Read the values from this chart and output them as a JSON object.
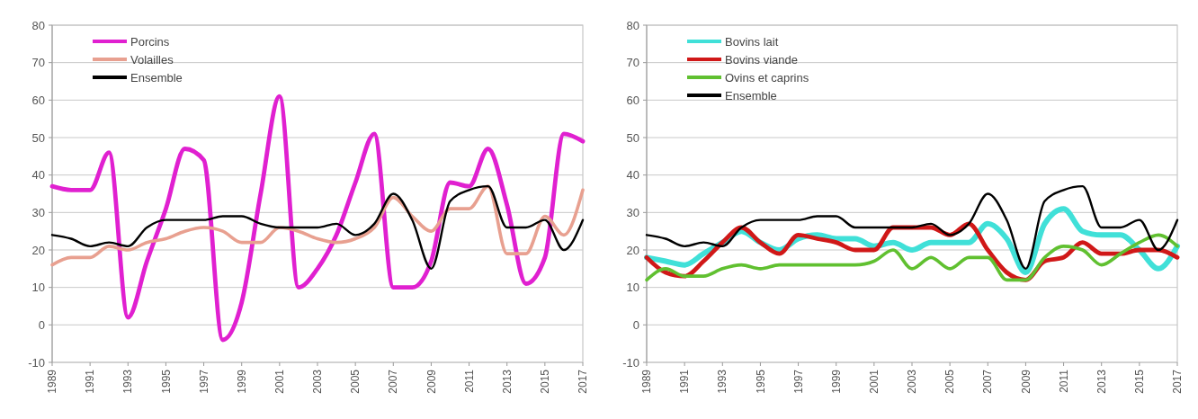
{
  "chart_data": [
    {
      "type": "line",
      "x": [
        1989,
        1990,
        1991,
        1992,
        1993,
        1994,
        1995,
        1996,
        1997,
        1998,
        1999,
        2000,
        2001,
        2002,
        2003,
        2004,
        2005,
        2006,
        2007,
        2008,
        2009,
        2010,
        2011,
        2012,
        2013,
        2014,
        2015,
        2016,
        2017
      ],
      "series": [
        {
          "name": "Porcins",
          "color": "#e020d0",
          "values": [
            37,
            36,
            36,
            46,
            2,
            17,
            31,
            47,
            44,
            -4,
            6,
            35,
            61,
            10,
            15,
            24,
            38,
            51,
            10,
            10,
            17,
            38,
            37,
            47,
            32,
            11,
            18,
            51,
            49
          ]
        },
        {
          "name": "Volailles",
          "color": "#e8a090",
          "values": [
            16,
            18,
            18,
            21,
            20,
            22,
            23,
            25,
            26,
            25,
            22,
            22,
            26,
            25,
            23,
            22,
            23,
            26,
            34,
            29,
            25,
            31,
            31,
            37,
            19,
            19,
            29,
            24,
            36
          ]
        },
        {
          "name": "Ensemble",
          "color": "#000000",
          "values": [
            24,
            23,
            21,
            22,
            21,
            26,
            28,
            28,
            28,
            29,
            29,
            27,
            26,
            26,
            26,
            27,
            24,
            27,
            35,
            28,
            15,
            33,
            36,
            37,
            26,
            26,
            28,
            20,
            28
          ]
        }
      ],
      "xlim": [
        1989,
        2017
      ],
      "xticks": [
        1989,
        1991,
        1993,
        1995,
        1997,
        1999,
        2001,
        2003,
        2005,
        2007,
        2009,
        2011,
        2013,
        2015,
        2017
      ],
      "ylim": [
        -10,
        80
      ],
      "yticks": [
        -10,
        0,
        10,
        20,
        30,
        40,
        50,
        60,
        70,
        80
      ],
      "grid": "y",
      "legend": "top left",
      "marker": "none",
      "line_style": "solid"
    },
    {
      "type": "line",
      "x": [
        1989,
        1990,
        1991,
        1992,
        1993,
        1994,
        1995,
        1996,
        1997,
        1998,
        1999,
        2000,
        2001,
        2002,
        2003,
        2004,
        2005,
        2006,
        2007,
        2008,
        2009,
        2010,
        2011,
        2012,
        2013,
        2014,
        2015,
        2016,
        2017
      ],
      "series": [
        {
          "name": "Bovins lait",
          "color": "#40e0d8",
          "values": [
            18,
            17,
            16,
            19,
            22,
            25,
            22,
            20,
            23,
            24,
            23,
            23,
            21,
            22,
            20,
            22,
            22,
            22,
            27,
            23,
            14,
            27,
            31,
            25,
            24,
            24,
            20,
            15,
            21
          ]
        },
        {
          "name": "Bovins viande",
          "color": "#d01818",
          "values": [
            18,
            14,
            13,
            17,
            22,
            26,
            22,
            19,
            24,
            23,
            22,
            20,
            20,
            26,
            26,
            26,
            24,
            27,
            20,
            14,
            12,
            17,
            18,
            22,
            19,
            19,
            20,
            20,
            18
          ]
        },
        {
          "name": "Ovins et caprins",
          "color": "#60c030",
          "values": [
            12,
            15,
            13,
            13,
            15,
            16,
            15,
            16,
            16,
            16,
            16,
            16,
            17,
            20,
            15,
            18,
            15,
            18,
            18,
            12,
            12,
            18,
            21,
            20,
            16,
            19,
            22,
            24,
            21
          ]
        },
        {
          "name": "Ensemble",
          "color": "#000000",
          "values": [
            24,
            23,
            21,
            22,
            21,
            26,
            28,
            28,
            28,
            29,
            29,
            26,
            26,
            26,
            26,
            27,
            24,
            27,
            35,
            28,
            15,
            33,
            36,
            37,
            26,
            26,
            28,
            20,
            28
          ]
        }
      ],
      "xlim": [
        1989,
        2017
      ],
      "xticks": [
        1989,
        1991,
        1993,
        1995,
        1997,
        1999,
        2001,
        2003,
        2005,
        2007,
        2009,
        2011,
        2013,
        2015,
        2017
      ],
      "ylim": [
        -10,
        80
      ],
      "yticks": [
        -10,
        0,
        10,
        20,
        30,
        40,
        50,
        60,
        70,
        80
      ],
      "grid": "y",
      "legend": "top left",
      "marker": "none",
      "line_style": "solid"
    }
  ]
}
